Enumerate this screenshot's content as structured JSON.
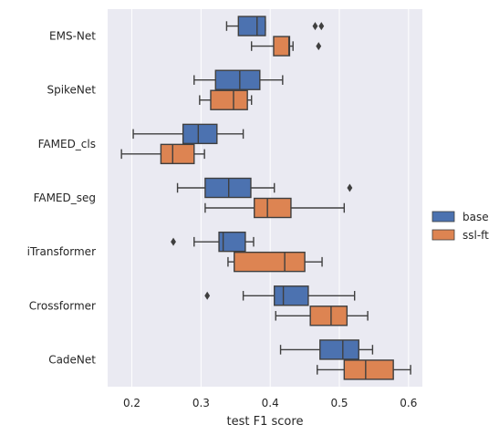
{
  "chart_data": {
    "type": "box",
    "xlabel": "test F1 score",
    "ylabel": "",
    "xlim": [
      0.165,
      0.62
    ],
    "xticks": [
      "0.2",
      "0.3",
      "0.4",
      "0.5",
      "0.6"
    ],
    "grid": true,
    "legend_position": "right",
    "categories": [
      "EMS-Net",
      "SpikeNet",
      "FAMED_cls",
      "FAMED_seg",
      "iTransformer",
      "Crossformer",
      "CadeNet"
    ],
    "series": [
      {
        "name": "base",
        "color": "#4c72b0",
        "boxes": [
          {
            "whislo": 0.337,
            "q1": 0.354,
            "med": 0.381,
            "q3": 0.393,
            "whishi": 0.393,
            "fliers": [
              0.465,
              0.474
            ]
          },
          {
            "whislo": 0.29,
            "q1": 0.321,
            "med": 0.356,
            "q3": 0.385,
            "whishi": 0.418,
            "fliers": []
          },
          {
            "whislo": 0.202,
            "q1": 0.274,
            "med": 0.296,
            "q3": 0.323,
            "whishi": 0.361,
            "fliers": []
          },
          {
            "whislo": 0.266,
            "q1": 0.306,
            "med": 0.34,
            "q3": 0.372,
            "whishi": 0.406,
            "fliers": [
              0.515
            ]
          },
          {
            "whislo": 0.29,
            "q1": 0.326,
            "med": 0.332,
            "q3": 0.364,
            "whishi": 0.376,
            "fliers": [
              0.26
            ]
          },
          {
            "whislo": 0.361,
            "q1": 0.406,
            "med": 0.419,
            "q3": 0.455,
            "whishi": 0.522,
            "fliers": [
              0.309
            ]
          },
          {
            "whislo": 0.415,
            "q1": 0.472,
            "med": 0.505,
            "q3": 0.528,
            "whishi": 0.548,
            "fliers": []
          }
        ]
      },
      {
        "name": "ssl-ft",
        "color": "#dd8452",
        "boxes": [
          {
            "whislo": 0.373,
            "q1": 0.405,
            "med": 0.427,
            "q3": 0.428,
            "whishi": 0.433,
            "fliers": [
              0.47
            ]
          },
          {
            "whislo": 0.298,
            "q1": 0.314,
            "med": 0.347,
            "q3": 0.367,
            "whishi": 0.373,
            "fliers": []
          },
          {
            "whislo": 0.185,
            "q1": 0.242,
            "med": 0.259,
            "q3": 0.29,
            "whishi": 0.305,
            "fliers": []
          },
          {
            "whislo": 0.306,
            "q1": 0.377,
            "med": 0.396,
            "q3": 0.43,
            "whishi": 0.507,
            "fliers": []
          },
          {
            "whislo": 0.339,
            "q1": 0.348,
            "med": 0.421,
            "q3": 0.45,
            "whishi": 0.475,
            "fliers": []
          },
          {
            "whislo": 0.408,
            "q1": 0.458,
            "med": 0.488,
            "q3": 0.511,
            "whishi": 0.541,
            "fliers": []
          },
          {
            "whislo": 0.468,
            "q1": 0.507,
            "med": 0.538,
            "q3": 0.578,
            "whishi": 0.603,
            "fliers": []
          }
        ]
      }
    ]
  }
}
